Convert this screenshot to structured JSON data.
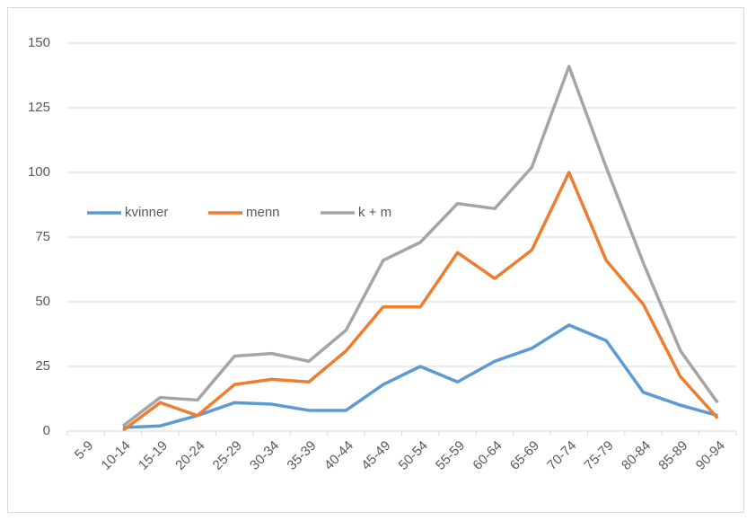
{
  "chart_data": {
    "type": "line",
    "categories": [
      "5-9",
      "10-14",
      "15-19",
      "20-24",
      "25-29",
      "30-34",
      "35-39",
      "40-44",
      "45-49",
      "50-54",
      "55-59",
      "60-64",
      "65-69",
      "70-74",
      "75-79",
      "80-84",
      "85-89",
      "90-94"
    ],
    "series": [
      {
        "name": "kvinner",
        "color": "#5b9bd5",
        "values": [
          null,
          1.4,
          2,
          6,
          11,
          10.4,
          8,
          8,
          18,
          25,
          19,
          27,
          32,
          41,
          35,
          15,
          10,
          6
        ]
      },
      {
        "name": "menn",
        "color": "#ed7d31",
        "values": [
          null,
          0.3,
          11,
          6,
          18,
          20,
          19,
          31,
          48,
          48,
          69,
          59,
          70,
          100,
          66,
          49,
          21,
          5
        ]
      },
      {
        "name": "k + m",
        "color": "#a5a5a5",
        "values": [
          null,
          2,
          13,
          12,
          29,
          30,
          27,
          39,
          66,
          73,
          88,
          86,
          102,
          141,
          102,
          65,
          31,
          11
        ]
      }
    ],
    "ylim": [
      0,
      150
    ],
    "yticks": [
      0,
      25,
      50,
      75,
      100,
      125,
      150
    ],
    "grid": true,
    "legend": "left"
  }
}
